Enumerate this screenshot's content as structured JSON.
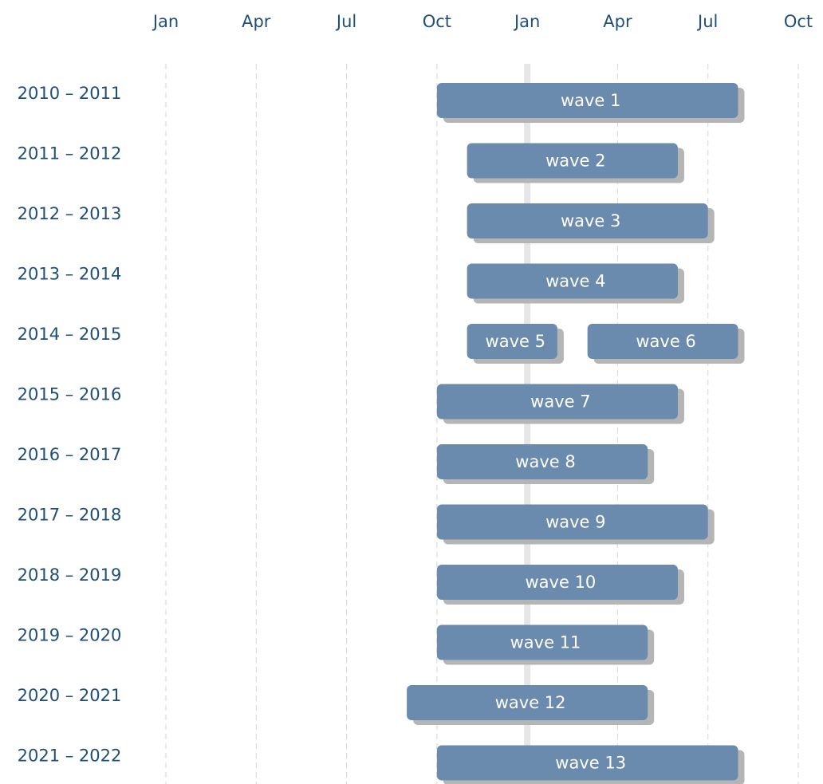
{
  "chart_data": {
    "type": "gantt",
    "color": "#6a8bad",
    "shadow_color": "#b5b5b5",
    "label_color": "#1f4e79",
    "xlim": [
      0,
      21
    ],
    "xticks": [
      {
        "value": 0,
        "label": "Jan"
      },
      {
        "value": 3,
        "label": "Apr"
      },
      {
        "value": 6,
        "label": "Jul"
      },
      {
        "value": 9,
        "label": "Oct"
      },
      {
        "value": 12,
        "label": "Jan"
      },
      {
        "value": 15,
        "label": "Apr"
      },
      {
        "value": 18,
        "label": "Jul"
      },
      {
        "value": 21,
        "label": "Oct"
      }
    ],
    "grid": true,
    "highlight_x": 12,
    "rows": [
      {
        "name": "2010 – 2011",
        "tasks": [
          {
            "name": "wave 1",
            "start": 9,
            "end": 19
          }
        ]
      },
      {
        "name": "2011 – 2012",
        "tasks": [
          {
            "name": "wave 2",
            "start": 10,
            "end": 17
          }
        ]
      },
      {
        "name": "2012 – 2013",
        "tasks": [
          {
            "name": "wave 3",
            "start": 10,
            "end": 18
          }
        ]
      },
      {
        "name": "2013 – 2014",
        "tasks": [
          {
            "name": "wave 4",
            "start": 10,
            "end": 17
          }
        ]
      },
      {
        "name": "2014 – 2015",
        "tasks": [
          {
            "name": "wave 5",
            "start": 10,
            "end": 13
          },
          {
            "name": "wave 6",
            "start": 14,
            "end": 19
          }
        ]
      },
      {
        "name": "2015 – 2016",
        "tasks": [
          {
            "name": "wave 7",
            "start": 9,
            "end": 17
          }
        ]
      },
      {
        "name": "2016 – 2017",
        "tasks": [
          {
            "name": "wave 8",
            "start": 9,
            "end": 16
          }
        ]
      },
      {
        "name": "2017 – 2018",
        "tasks": [
          {
            "name": "wave 9",
            "start": 9,
            "end": 18
          }
        ]
      },
      {
        "name": "2018 – 2019",
        "tasks": [
          {
            "name": "wave 10",
            "start": 9,
            "end": 17
          }
        ]
      },
      {
        "name": "2019 – 2020",
        "tasks": [
          {
            "name": "wave 11",
            "start": 9,
            "end": 16
          }
        ]
      },
      {
        "name": "2020 – 2021",
        "tasks": [
          {
            "name": "wave 12",
            "start": 8,
            "end": 16
          }
        ]
      },
      {
        "name": "2021 – 2022",
        "tasks": [
          {
            "name": "wave 13",
            "start": 9,
            "end": 19
          }
        ]
      }
    ]
  }
}
